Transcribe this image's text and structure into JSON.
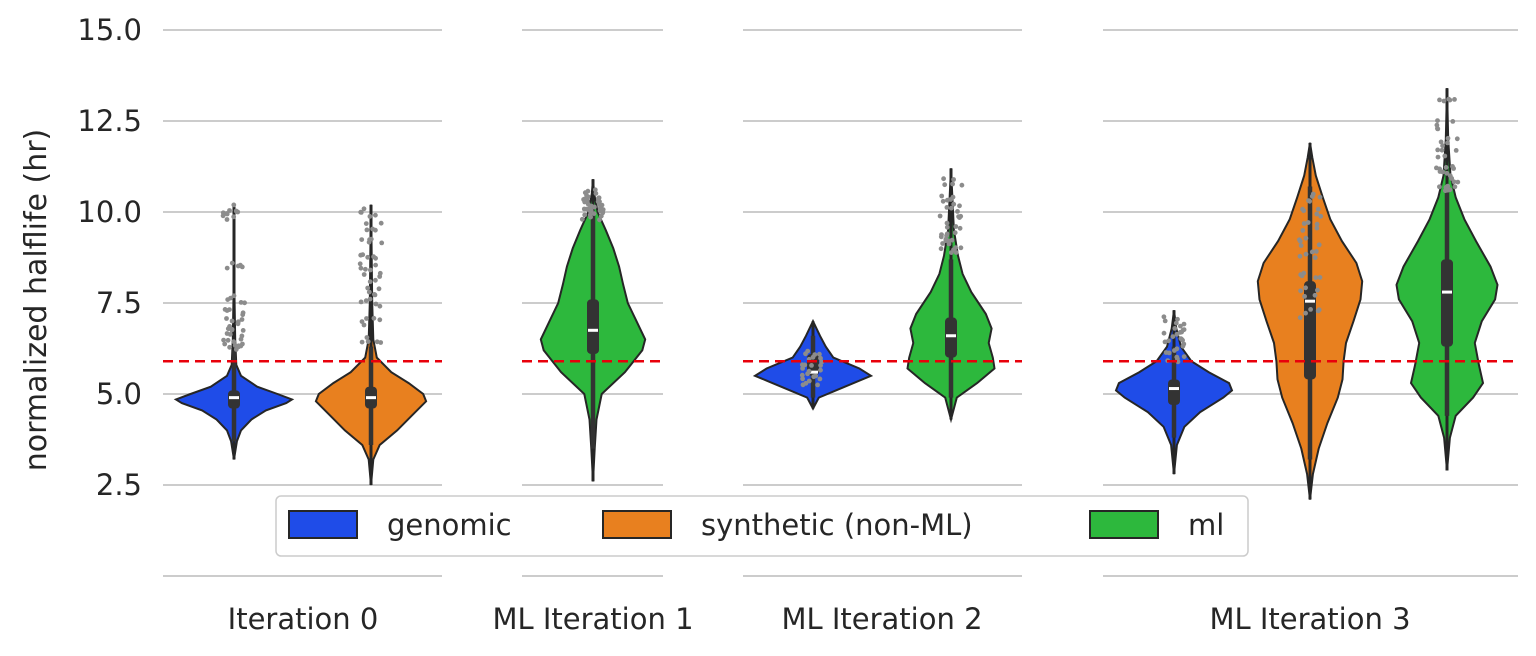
{
  "chart_data": {
    "type": "violin",
    "ylabel": "normalized halflife (hr)",
    "xlabel": "",
    "ylim": [
      0.5,
      15.0
    ],
    "yticks": [
      "2.5",
      "5.0",
      "7.5",
      "10.0",
      "12.5",
      "15.0"
    ],
    "ytick_values": [
      2.5,
      5.0,
      7.5,
      10.0,
      12.5,
      15.0
    ],
    "grid": "horizontal",
    "legend_placement": "bottom-center",
    "threshold_line": {
      "y": 5.9,
      "color": "#e8000b",
      "style": "dashed"
    },
    "colors": {
      "genomic": "#1f4ce8",
      "synthetic": "#e8801f",
      "ml": "#2db83d",
      "jitter": "#8c8c8c",
      "box": "#333333"
    },
    "panels": [
      {
        "label": "Iteration 0",
        "violins": [
          {
            "series": "genomic",
            "min": 3.2,
            "q1": 4.6,
            "median": 4.9,
            "q3": 5.1,
            "max": 10.2,
            "whisker_low": 3.7,
            "whisker_high": 6.2,
            "width": [
              [
                3.2,
                0.0
              ],
              [
                3.7,
                0.05
              ],
              [
                4.0,
                0.12
              ],
              [
                4.3,
                0.3
              ],
              [
                4.55,
                0.55
              ],
              [
                4.75,
                0.9
              ],
              [
                4.85,
                1.0
              ],
              [
                5.0,
                0.75
              ],
              [
                5.2,
                0.4
              ],
              [
                5.5,
                0.12
              ],
              [
                5.8,
                0.04
              ],
              [
                6.5,
                0.02
              ],
              [
                8.0,
                0.006
              ],
              [
                10.2,
                0.0
              ]
            ],
            "outliers": [
              [
                0,
                6.3
              ],
              [
                0,
                6.4
              ],
              [
                0,
                6.6
              ],
              [
                0,
                6.8
              ],
              [
                0,
                7.0
              ],
              [
                0,
                7.3
              ],
              [
                0,
                7.6
              ],
              [
                0,
                8.5
              ],
              [
                0,
                9.9
              ],
              [
                0,
                10.1
              ]
            ]
          },
          {
            "series": "synthetic",
            "min": 2.5,
            "q1": 4.6,
            "median": 4.9,
            "q3": 5.2,
            "max": 10.2,
            "whisker_low": 3.6,
            "whisker_high": 6.3,
            "width": [
              [
                2.5,
                0.0
              ],
              [
                3.2,
                0.04
              ],
              [
                3.6,
                0.15
              ],
              [
                4.0,
                0.45
              ],
              [
                4.4,
                0.7
              ],
              [
                4.8,
                0.95
              ],
              [
                5.0,
                0.9
              ],
              [
                5.3,
                0.65
              ],
              [
                5.6,
                0.35
              ],
              [
                6.0,
                0.1
              ],
              [
                6.5,
                0.04
              ],
              [
                7.5,
                0.02
              ],
              [
                9.0,
                0.01
              ],
              [
                10.2,
                0.0
              ]
            ],
            "outliers": [
              [
                0,
                6.5
              ],
              [
                0,
                7.0
              ],
              [
                0,
                7.5
              ],
              [
                0,
                7.8
              ],
              [
                0,
                8.2
              ],
              [
                0,
                8.5
              ],
              [
                0,
                8.8
              ],
              [
                0,
                9.2
              ],
              [
                0,
                9.6
              ],
              [
                0,
                10.0
              ]
            ]
          }
        ]
      },
      {
        "label": "ML Iteration 1",
        "violins": [
          {
            "series": "ml",
            "min": 2.6,
            "q1": 6.1,
            "median": 6.75,
            "q3": 7.6,
            "max": 10.9,
            "whisker_low": 3.5,
            "whisker_high": 10.0,
            "width": [
              [
                2.6,
                0.0
              ],
              [
                3.5,
                0.03
              ],
              [
                4.3,
                0.06
              ],
              [
                5.0,
                0.15
              ],
              [
                5.6,
                0.55
              ],
              [
                6.2,
                0.85
              ],
              [
                6.5,
                0.9
              ],
              [
                7.0,
                0.75
              ],
              [
                7.5,
                0.6
              ],
              [
                8.0,
                0.52
              ],
              [
                8.5,
                0.45
              ],
              [
                9.0,
                0.35
              ],
              [
                9.5,
                0.22
              ],
              [
                10.0,
                0.08
              ],
              [
                10.5,
                0.02
              ],
              [
                10.9,
                0.0
              ]
            ],
            "outliers": [
              [
                0,
                9.9
              ],
              [
                0,
                10.0
              ],
              [
                0,
                10.05
              ],
              [
                0,
                10.1
              ],
              [
                0,
                10.2
              ],
              [
                0,
                10.3
              ],
              [
                0,
                10.4
              ],
              [
                0,
                10.5
              ]
            ]
          }
        ]
      },
      {
        "label": "ML Iteration 2",
        "violins": [
          {
            "series": "genomic",
            "min": 4.6,
            "q1": 5.5,
            "median": 5.6,
            "q3": 6.1,
            "max": 7.0,
            "whisker_low": 4.9,
            "whisker_high": 6.6,
            "width": [
              [
                4.6,
                0.0
              ],
              [
                4.9,
                0.1
              ],
              [
                5.2,
                0.55
              ],
              [
                5.5,
                1.0
              ],
              [
                5.7,
                0.8
              ],
              [
                6.0,
                0.35
              ],
              [
                6.3,
                0.22
              ],
              [
                6.6,
                0.12
              ],
              [
                7.0,
                0.0
              ]
            ],
            "outliers": [
              [
                0,
                5.3
              ],
              [
                0,
                5.5
              ],
              [
                0,
                5.7
              ],
              [
                0,
                5.9
              ],
              [
                0,
                6.1
              ]
            ]
          },
          {
            "series": "ml",
            "min": 4.3,
            "q1": 6.0,
            "median": 6.6,
            "q3": 7.1,
            "max": 11.2,
            "whisker_low": 4.9,
            "whisker_high": 8.7,
            "width": [
              [
                4.3,
                0.0
              ],
              [
                4.9,
                0.1
              ],
              [
                5.3,
                0.45
              ],
              [
                5.7,
                0.75
              ],
              [
                6.0,
                0.72
              ],
              [
                6.4,
                0.65
              ],
              [
                6.8,
                0.7
              ],
              [
                7.2,
                0.6
              ],
              [
                7.8,
                0.35
              ],
              [
                8.3,
                0.2
              ],
              [
                8.8,
                0.12
              ],
              [
                9.5,
                0.05
              ],
              [
                10.5,
                0.02
              ],
              [
                11.2,
                0.0
              ]
            ],
            "outliers": [
              [
                0,
                8.9
              ],
              [
                0,
                9.1
              ],
              [
                0,
                9.3
              ],
              [
                0,
                9.5
              ],
              [
                0,
                9.8
              ],
              [
                0,
                10.1
              ],
              [
                0,
                10.4
              ],
              [
                0,
                10.8
              ]
            ]
          }
        ]
      },
      {
        "label": "ML Iteration 3",
        "violins": [
          {
            "series": "genomic",
            "min": 2.8,
            "q1": 4.7,
            "median": 5.15,
            "q3": 5.4,
            "max": 7.3,
            "whisker_low": 3.8,
            "whisker_high": 6.3,
            "width": [
              [
                2.8,
                0.0
              ],
              [
                3.6,
                0.05
              ],
              [
                4.1,
                0.18
              ],
              [
                4.5,
                0.45
              ],
              [
                4.9,
                0.85
              ],
              [
                5.1,
                1.0
              ],
              [
                5.3,
                0.95
              ],
              [
                5.6,
                0.6
              ],
              [
                5.9,
                0.3
              ],
              [
                6.3,
                0.12
              ],
              [
                6.8,
                0.04
              ],
              [
                7.3,
                0.0
              ]
            ],
            "outliers": [
              [
                0,
                6.0
              ],
              [
                0,
                6.2
              ],
              [
                0,
                6.4
              ],
              [
                0,
                6.6
              ],
              [
                0,
                6.8
              ],
              [
                0,
                7.0
              ]
            ]
          },
          {
            "series": "synthetic",
            "min": 2.1,
            "q1": 5.4,
            "median": 7.55,
            "q3": 8.1,
            "max": 11.9,
            "whisker_low": 3.2,
            "whisker_high": 10.7,
            "width": [
              [
                2.1,
                0.0
              ],
              [
                2.8,
                0.05
              ],
              [
                3.5,
                0.15
              ],
              [
                4.2,
                0.3
              ],
              [
                4.9,
                0.48
              ],
              [
                5.4,
                0.56
              ],
              [
                5.9,
                0.58
              ],
              [
                6.4,
                0.62
              ],
              [
                7.0,
                0.75
              ],
              [
                7.6,
                0.87
              ],
              [
                8.1,
                0.9
              ],
              [
                8.6,
                0.8
              ],
              [
                9.2,
                0.55
              ],
              [
                9.8,
                0.35
              ],
              [
                10.4,
                0.22
              ],
              [
                11.0,
                0.1
              ],
              [
                11.5,
                0.04
              ],
              [
                11.9,
                0.0
              ]
            ],
            "outliers": [
              [
                0,
                7.2
              ],
              [
                0,
                7.8
              ],
              [
                0,
                8.3
              ],
              [
                0,
                8.8
              ],
              [
                0,
                9.2
              ],
              [
                0,
                9.6
              ],
              [
                0,
                10.0
              ],
              [
                0,
                10.4
              ]
            ]
          },
          {
            "series": "ml",
            "min": 2.9,
            "q1": 6.3,
            "median": 7.8,
            "q3": 8.7,
            "max": 13.4,
            "whisker_low": 4.4,
            "whisker_high": 10.6,
            "width": [
              [
                2.9,
                0.0
              ],
              [
                3.8,
                0.05
              ],
              [
                4.4,
                0.15
              ],
              [
                4.9,
                0.45
              ],
              [
                5.3,
                0.62
              ],
              [
                5.8,
                0.55
              ],
              [
                6.4,
                0.48
              ],
              [
                7.0,
                0.6
              ],
              [
                7.6,
                0.83
              ],
              [
                8.0,
                0.87
              ],
              [
                8.5,
                0.75
              ],
              [
                9.2,
                0.5
              ],
              [
                9.8,
                0.3
              ],
              [
                10.4,
                0.15
              ],
              [
                11.0,
                0.06
              ],
              [
                12.0,
                0.02
              ],
              [
                13.4,
                0.0
              ]
            ],
            "outliers": [
              [
                0,
                10.6
              ],
              [
                0,
                10.8
              ],
              [
                0,
                11.0
              ],
              [
                0,
                11.3
              ],
              [
                0,
                11.6
              ],
              [
                0,
                11.9
              ],
              [
                0,
                12.4
              ],
              [
                0,
                13.0
              ]
            ]
          }
        ]
      }
    ],
    "legend": [
      {
        "series": "genomic",
        "label": "genomic"
      },
      {
        "series": "synthetic",
        "label": "synthetic (non-ML)"
      },
      {
        "series": "ml",
        "label": "ml"
      }
    ]
  }
}
